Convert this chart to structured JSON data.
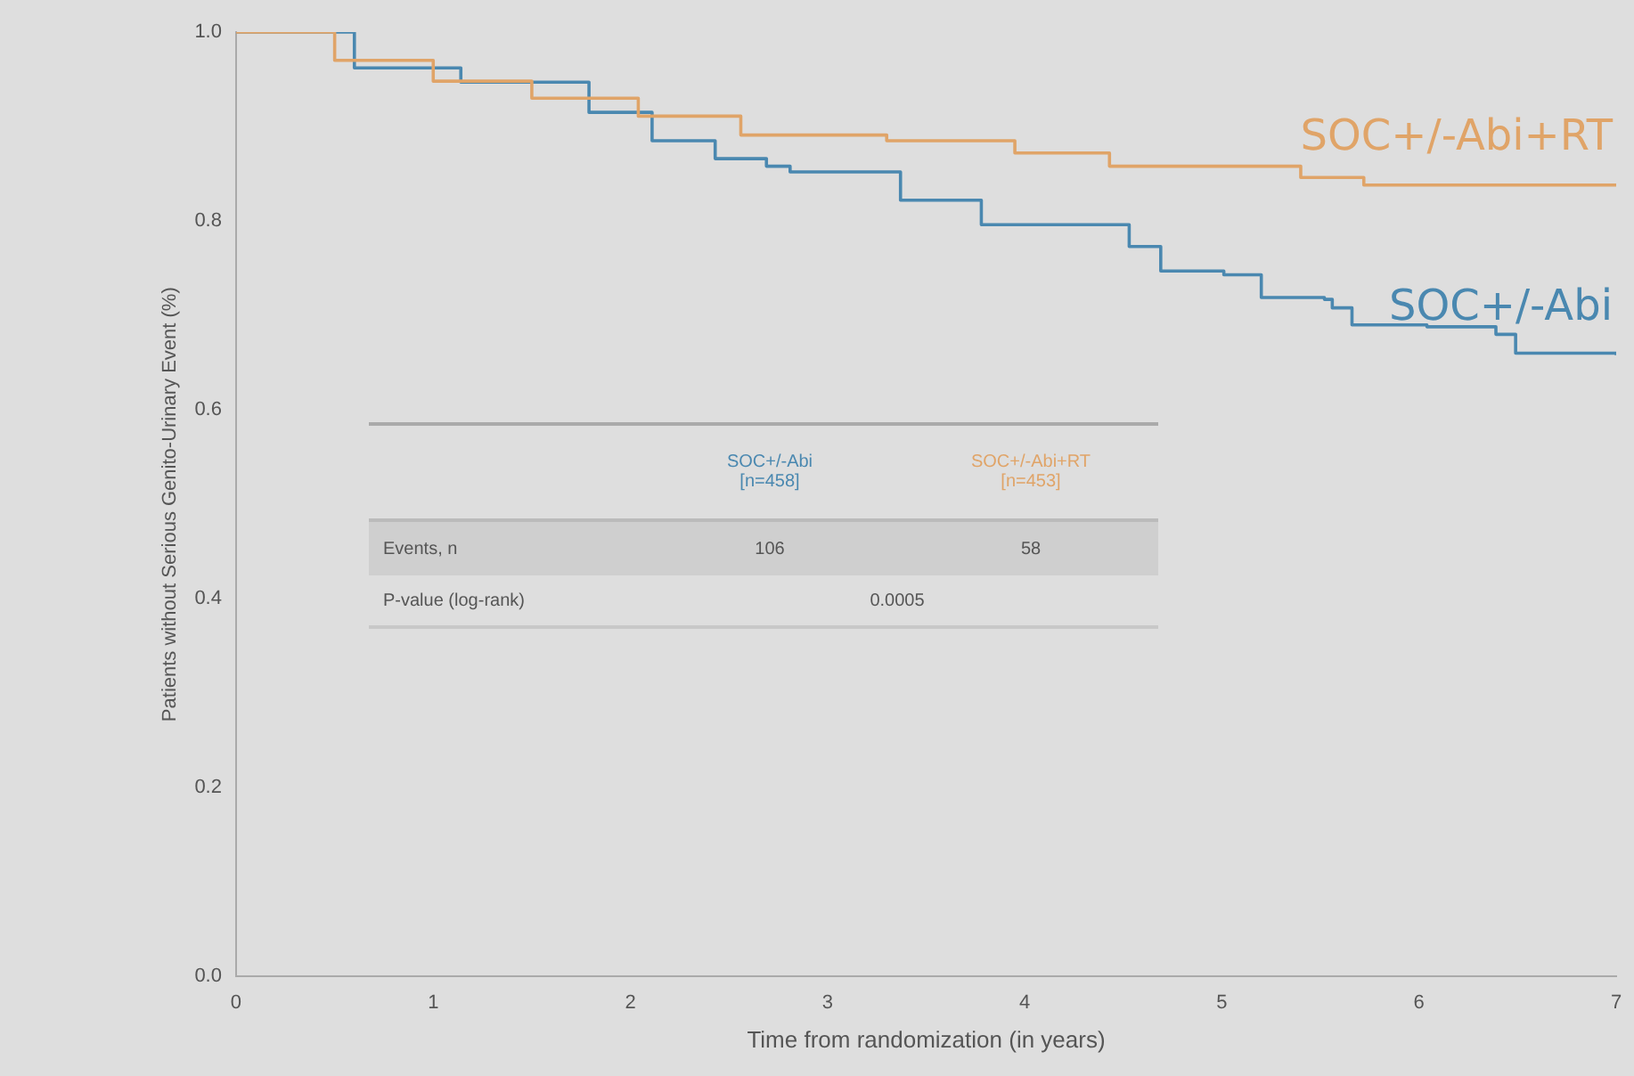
{
  "chart_data": {
    "type": "step",
    "xlabel": "Time from randomization (in years)",
    "ylabel": "Patients without Serious Genito-Urinary Event (%)",
    "xlim": [
      0,
      7
    ],
    "xticks": [
      0,
      1,
      2,
      3,
      4,
      5,
      6,
      7
    ],
    "ylim": [
      0,
      1
    ],
    "yticks": [
      {
        "value": 0,
        "label": "0.0"
      },
      {
        "value": 0.2,
        "label": "0.2"
      },
      {
        "value": 0.4,
        "label": "0.4"
      },
      {
        "value": 0.6,
        "label": "0.6"
      },
      {
        "value": 0.8,
        "label": "0.8"
      },
      {
        "value": 1,
        "label": "1.0"
      }
    ],
    "grid": false,
    "legend": false,
    "series": [
      {
        "name": "SOC+/-Abi+RT",
        "color": "#e0a468",
        "x": [
          0,
          0.5,
          1.0,
          1.5,
          2.04,
          2.56,
          3.3,
          3.95,
          4.43,
          5.4,
          5.72,
          7.0
        ],
        "values": [
          1.0,
          0.97,
          0.948,
          0.93,
          0.911,
          0.891,
          0.885,
          0.872,
          0.858,
          0.846,
          0.838,
          0.838
        ]
      },
      {
        "name": "SOC+/-Abi",
        "color": "#4a88b0",
        "x": [
          0,
          0.6,
          1.14,
          1.79,
          2.11,
          2.43,
          2.69,
          2.81,
          3.37,
          3.78,
          4.53,
          4.69,
          5.01,
          5.2,
          5.52,
          5.56,
          5.66,
          6.04,
          6.39,
          6.49,
          7.0
        ],
        "values": [
          1.0,
          0.962,
          0.947,
          0.915,
          0.885,
          0.866,
          0.858,
          0.852,
          0.822,
          0.796,
          0.773,
          0.747,
          0.743,
          0.719,
          0.717,
          0.708,
          0.69,
          0.688,
          0.68,
          0.66,
          0.658
        ]
      }
    ],
    "annotations": [
      "SOC+/-Abi [n=458]",
      "SOC+/-Abi+RT [n=453]",
      "Events, n",
      "106",
      "58",
      "P-value (log-rank)",
      "0.0005"
    ]
  }
}
